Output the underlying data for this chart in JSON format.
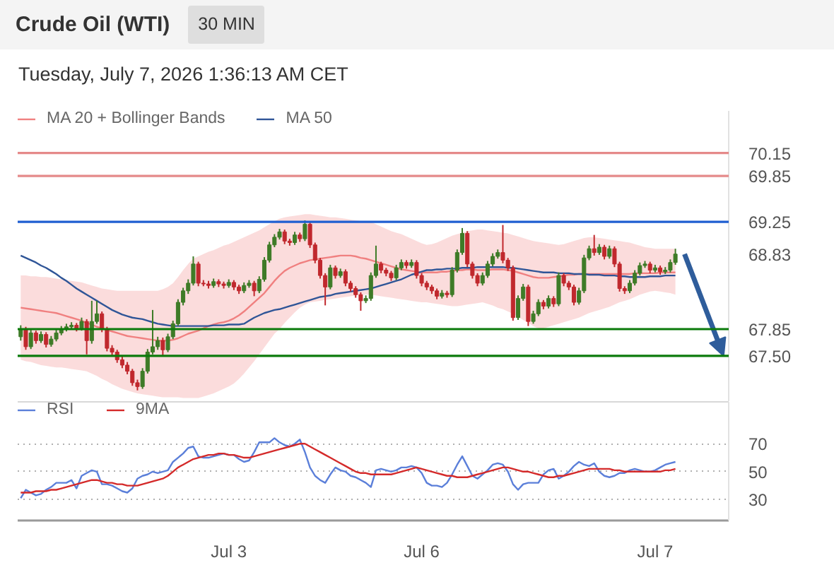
{
  "chart_data": [
    {
      "type": "candlestick",
      "title": "Crude Oil (WTI)",
      "subtitle": "Tuesday, July 7, 2026 1:36:13 AM CET",
      "annotations": [
        "30 MIN"
      ],
      "categories": [
        null,
        null,
        null,
        null,
        null,
        null,
        null,
        null,
        null,
        null,
        null,
        null,
        null,
        null,
        null,
        null,
        null,
        null,
        null,
        null,
        null,
        null,
        null,
        null,
        null,
        null,
        null,
        null,
        null,
        null,
        null,
        null,
        null,
        null,
        null,
        null,
        null,
        null,
        null,
        null,
        null,
        null,
        null,
        null,
        null,
        null,
        null,
        null,
        null,
        null,
        null,
        null,
        null,
        null,
        null,
        null,
        null,
        null,
        null,
        null,
        null,
        null,
        null,
        null,
        null,
        null,
        null,
        null,
        null,
        null,
        null,
        null,
        null,
        null,
        null,
        null,
        null,
        null,
        null,
        null,
        null,
        null,
        null,
        null,
        null,
        null,
        null,
        null,
        null,
        null,
        null,
        null,
        null,
        null,
        null,
        null,
        null,
        null,
        null,
        null,
        null,
        null,
        null,
        null,
        null,
        null,
        null,
        null,
        null,
        null,
        null,
        null,
        null,
        null,
        null,
        null,
        null,
        null,
        null,
        null,
        null,
        null,
        null,
        null,
        null,
        null,
        null,
        null,
        null,
        null
      ],
      "ohlc": [
        [
          67.75,
          67.9,
          67.7,
          67.85
        ],
        [
          67.85,
          67.88,
          67.58,
          67.62
        ],
        [
          67.62,
          67.84,
          67.59,
          67.8
        ],
        [
          67.8,
          67.83,
          67.66,
          67.7
        ],
        [
          67.7,
          67.82,
          67.67,
          67.78
        ],
        [
          67.78,
          67.81,
          67.61,
          67.65
        ],
        [
          67.65,
          67.76,
          67.62,
          67.72
        ],
        [
          67.72,
          67.84,
          67.69,
          67.8
        ],
        [
          67.8,
          67.89,
          67.77,
          67.85
        ],
        [
          67.85,
          67.92,
          67.82,
          67.88
        ],
        [
          67.88,
          67.94,
          67.85,
          67.9
        ],
        [
          67.9,
          67.93,
          67.82,
          67.86
        ],
        [
          67.86,
          68.0,
          67.83,
          67.95
        ],
        [
          67.95,
          67.98,
          67.52,
          67.7
        ],
        [
          67.7,
          68.22,
          67.66,
          67.95
        ],
        [
          67.95,
          68.22,
          67.92,
          68.05
        ],
        [
          68.05,
          68.08,
          67.81,
          67.85
        ],
        [
          67.85,
          67.88,
          67.56,
          67.6
        ],
        [
          67.6,
          67.64,
          67.51,
          67.55
        ],
        [
          67.55,
          67.58,
          67.41,
          67.45
        ],
        [
          67.45,
          67.49,
          67.34,
          67.38
        ],
        [
          67.38,
          67.42,
          67.26,
          67.3
        ],
        [
          67.3,
          67.33,
          67.11,
          67.15
        ],
        [
          67.15,
          67.19,
          67.05,
          67.1
        ],
        [
          67.1,
          67.34,
          67.07,
          67.3
        ],
        [
          67.3,
          67.59,
          67.27,
          67.55
        ],
        [
          67.55,
          68.1,
          67.52,
          67.62
        ],
        [
          67.62,
          67.75,
          67.58,
          67.7
        ],
        [
          67.7,
          67.74,
          67.5,
          67.58
        ],
        [
          67.58,
          67.79,
          67.55,
          67.75
        ],
        [
          67.75,
          67.96,
          67.72,
          67.92
        ],
        [
          67.92,
          68.24,
          67.89,
          68.2
        ],
        [
          68.2,
          68.39,
          68.16,
          68.35
        ],
        [
          68.35,
          68.5,
          68.31,
          68.45
        ],
        [
          68.45,
          68.8,
          68.42,
          68.7
        ],
        [
          68.7,
          68.73,
          68.41,
          68.45
        ],
        [
          68.45,
          68.49,
          68.41,
          68.44
        ],
        [
          68.44,
          68.48,
          68.38,
          68.42
        ],
        [
          68.42,
          68.51,
          68.39,
          68.47
        ],
        [
          68.47,
          68.5,
          68.4,
          68.44
        ],
        [
          68.44,
          68.47,
          68.38,
          68.42
        ],
        [
          68.42,
          68.5,
          68.39,
          68.46
        ],
        [
          68.46,
          68.49,
          68.36,
          68.4
        ],
        [
          68.4,
          68.43,
          68.31,
          68.35
        ],
        [
          68.35,
          68.46,
          68.32,
          68.42
        ],
        [
          68.42,
          68.49,
          68.39,
          68.45
        ],
        [
          68.45,
          68.48,
          68.28,
          68.35
        ],
        [
          68.35,
          68.54,
          68.32,
          68.5
        ],
        [
          68.5,
          68.79,
          68.47,
          68.75
        ],
        [
          68.75,
          68.99,
          68.72,
          68.95
        ],
        [
          68.95,
          69.09,
          68.92,
          69.05
        ],
        [
          69.05,
          69.16,
          69.02,
          69.12
        ],
        [
          69.12,
          69.15,
          68.96,
          69.0
        ],
        [
          69.0,
          69.03,
          68.94,
          68.98
        ],
        [
          68.98,
          69.12,
          68.95,
          69.08
        ],
        [
          69.08,
          69.11,
          68.99,
          69.03
        ],
        [
          69.03,
          69.27,
          69.0,
          69.22
        ],
        [
          69.22,
          69.25,
          68.91,
          68.95
        ],
        [
          68.95,
          68.98,
          68.71,
          68.75
        ],
        [
          68.75,
          68.78,
          68.51,
          68.55
        ],
        [
          68.55,
          68.58,
          68.16,
          68.4
        ],
        [
          68.4,
          68.69,
          68.37,
          68.65
        ],
        [
          68.65,
          68.68,
          68.51,
          68.55
        ],
        [
          68.55,
          68.64,
          68.52,
          68.6
        ],
        [
          68.6,
          68.63,
          68.41,
          68.45
        ],
        [
          68.45,
          68.48,
          68.34,
          68.38
        ],
        [
          68.38,
          68.41,
          68.26,
          68.3
        ],
        [
          68.3,
          68.33,
          68.09,
          68.22
        ],
        [
          68.22,
          68.29,
          68.19,
          68.25
        ],
        [
          68.25,
          68.59,
          68.22,
          68.55
        ],
        [
          68.55,
          68.94,
          68.52,
          68.7
        ],
        [
          68.7,
          68.73,
          68.58,
          68.62
        ],
        [
          68.62,
          68.65,
          68.54,
          68.58
        ],
        [
          68.58,
          68.61,
          68.48,
          68.52
        ],
        [
          68.52,
          68.69,
          68.49,
          68.65
        ],
        [
          68.65,
          68.76,
          68.62,
          68.72
        ],
        [
          68.72,
          68.75,
          68.64,
          68.68
        ],
        [
          68.68,
          68.76,
          68.65,
          68.72
        ],
        [
          68.72,
          68.75,
          68.51,
          68.55
        ],
        [
          68.55,
          68.58,
          68.41,
          68.45
        ],
        [
          68.45,
          68.48,
          68.36,
          68.4
        ],
        [
          68.4,
          68.43,
          68.31,
          68.35
        ],
        [
          68.35,
          68.38,
          68.24,
          68.28
        ],
        [
          68.28,
          68.36,
          68.25,
          68.32
        ],
        [
          68.32,
          68.35,
          68.26,
          68.3
        ],
        [
          68.3,
          68.66,
          68.27,
          68.62
        ],
        [
          68.62,
          68.89,
          68.59,
          68.85
        ],
        [
          68.85,
          69.17,
          68.82,
          69.1
        ],
        [
          69.1,
          69.13,
          68.66,
          68.7
        ],
        [
          68.7,
          68.73,
          68.51,
          68.55
        ],
        [
          68.55,
          68.58,
          68.41,
          68.45
        ],
        [
          68.45,
          68.59,
          68.42,
          68.55
        ],
        [
          68.55,
          68.74,
          68.52,
          68.7
        ],
        [
          68.7,
          68.84,
          68.67,
          68.8
        ],
        [
          68.8,
          68.89,
          68.77,
          68.85
        ],
        [
          68.85,
          69.21,
          68.71,
          68.75
        ],
        [
          68.75,
          68.78,
          68.61,
          68.65
        ],
        [
          68.65,
          68.68,
          67.96,
          68.0
        ],
        [
          68.0,
          68.29,
          67.97,
          68.25
        ],
        [
          68.25,
          68.44,
          68.22,
          68.4
        ],
        [
          68.4,
          68.43,
          67.89,
          67.95
        ],
        [
          67.95,
          68.09,
          67.92,
          68.05
        ],
        [
          68.05,
          68.24,
          68.02,
          68.2
        ],
        [
          68.2,
          68.23,
          68.11,
          68.15
        ],
        [
          68.15,
          68.29,
          68.12,
          68.25
        ],
        [
          68.25,
          68.28,
          68.14,
          68.18
        ],
        [
          68.18,
          68.59,
          68.15,
          68.55
        ],
        [
          68.55,
          68.58,
          68.41,
          68.45
        ],
        [
          68.45,
          68.48,
          68.36,
          68.4
        ],
        [
          68.4,
          68.43,
          68.16,
          68.2
        ],
        [
          68.2,
          68.39,
          68.17,
          68.35
        ],
        [
          68.35,
          68.82,
          68.32,
          68.78
        ],
        [
          68.78,
          68.94,
          68.75,
          68.9
        ],
        [
          68.9,
          69.08,
          68.81,
          68.85
        ],
        [
          68.85,
          68.96,
          68.82,
          68.92
        ],
        [
          68.92,
          68.95,
          68.76,
          68.8
        ],
        [
          68.8,
          68.94,
          68.77,
          68.9
        ],
        [
          68.9,
          68.93,
          68.66,
          68.7
        ],
        [
          68.7,
          68.73,
          68.34,
          68.38
        ],
        [
          68.38,
          68.41,
          68.31,
          68.35
        ],
        [
          68.35,
          68.49,
          68.32,
          68.45
        ],
        [
          68.45,
          68.62,
          68.42,
          68.58
        ],
        [
          68.58,
          68.72,
          68.55,
          68.68
        ],
        [
          68.68,
          68.74,
          68.65,
          68.7
        ],
        [
          68.7,
          68.73,
          68.58,
          68.62
        ],
        [
          68.62,
          68.69,
          68.59,
          68.65
        ],
        [
          68.65,
          68.68,
          68.56,
          68.6
        ],
        [
          68.6,
          68.66,
          68.57,
          68.62
        ],
        [
          68.62,
          68.76,
          68.59,
          68.72
        ],
        [
          68.72,
          68.9,
          68.69,
          68.83
        ]
      ],
      "colors": [
        "#3e7b27",
        "#c0282d",
        "#3e7b27",
        "#c0282d",
        "#3e7b27",
        "#c0282d",
        "#3e7b27",
        "#3e7b27",
        "#3e7b27",
        "#3e7b27",
        "#3e7b27",
        "#c0282d",
        "#3e7b27",
        "#c0282d",
        "#3e7b27",
        "#3e7b27",
        "#c0282d",
        "#c0282d",
        "#c0282d",
        "#c0282d",
        "#c0282d",
        "#c0282d",
        "#c0282d",
        "#c0282d",
        "#3e7b27",
        "#3e7b27",
        "#3e7b27",
        "#3e7b27",
        "#c0282d",
        "#3e7b27",
        "#3e7b27",
        "#3e7b27",
        "#3e7b27",
        "#3e7b27",
        "#3e7b27",
        "#c0282d",
        "#c0282d",
        "#c0282d",
        "#3e7b27",
        "#c0282d",
        "#c0282d",
        "#3e7b27",
        "#c0282d",
        "#c0282d",
        "#3e7b27",
        "#3e7b27",
        "#c0282d",
        "#3e7b27",
        "#3e7b27",
        "#3e7b27",
        "#3e7b27",
        "#3e7b27",
        "#c0282d",
        "#c0282d",
        "#3e7b27",
        "#c0282d",
        "#3e7b27",
        "#c0282d",
        "#c0282d",
        "#c0282d",
        "#c0282d",
        "#3e7b27",
        "#c0282d",
        "#3e7b27",
        "#c0282d",
        "#c0282d",
        "#c0282d",
        "#c0282d",
        "#3e7b27",
        "#3e7b27",
        "#3e7b27",
        "#c0282d",
        "#c0282d",
        "#c0282d",
        "#3e7b27",
        "#3e7b27",
        "#c0282d",
        "#3e7b27",
        "#c0282d",
        "#c0282d",
        "#c0282d",
        "#c0282d",
        "#c0282d",
        "#3e7b27",
        "#c0282d",
        "#3e7b27",
        "#3e7b27",
        "#3e7b27",
        "#c0282d",
        "#c0282d",
        "#c0282d",
        "#3e7b27",
        "#3e7b27",
        "#3e7b27",
        "#3e7b27",
        "#c0282d",
        "#c0282d",
        "#c0282d",
        "#3e7b27",
        "#3e7b27",
        "#c0282d",
        "#3e7b27",
        "#3e7b27",
        "#c0282d",
        "#3e7b27",
        "#c0282d",
        "#3e7b27",
        "#c0282d",
        "#c0282d",
        "#c0282d",
        "#3e7b27",
        "#3e7b27",
        "#3e7b27",
        "#c0282d",
        "#3e7b27",
        "#c0282d",
        "#3e7b27",
        "#c0282d",
        "#c0282d",
        "#c0282d",
        "#3e7b27",
        "#3e7b27",
        "#3e7b27",
        "#3e7b27",
        "#c0282d",
        "#3e7b27",
        "#c0282d",
        "#3e7b27",
        "#3e7b27",
        "#3e7b27"
      ],
      "series": [
        {
          "type": "line",
          "name": "MA 20 + Bollinger Bands",
          "color": "#f08080",
          "values": [
            68.13,
            68.12,
            68.11,
            68.1,
            68.09,
            68.08,
            68.07,
            68.06,
            68.04,
            68.02,
            68.0,
            67.98,
            67.96,
            67.93,
            67.91,
            67.88,
            67.86,
            67.84,
            67.82,
            67.8,
            67.78,
            67.76,
            67.75,
            67.74,
            67.73,
            67.72,
            67.71,
            67.7,
            67.7,
            67.7,
            67.71,
            67.73,
            67.76,
            67.79,
            67.81,
            67.83,
            67.86,
            67.89,
            67.91,
            67.93,
            67.94,
            67.96,
            67.99,
            68.03,
            68.08,
            68.14,
            68.2,
            68.26,
            68.32,
            68.4,
            68.48,
            68.55,
            68.61,
            68.65,
            68.68,
            68.71,
            68.73,
            68.75,
            68.76,
            68.77,
            68.78,
            68.79,
            68.8,
            68.81,
            68.81,
            68.81,
            68.8,
            68.78,
            68.77,
            68.75,
            68.73,
            68.71,
            68.69,
            68.67,
            68.65,
            68.63,
            68.62,
            68.61,
            68.6,
            68.59,
            68.59,
            68.59,
            68.59,
            68.6,
            68.6,
            68.61,
            68.62,
            68.62,
            68.63,
            68.63,
            68.62,
            68.62,
            68.62,
            68.63,
            68.63,
            68.63,
            68.62,
            68.61,
            68.59,
            68.57,
            68.55,
            68.53,
            68.52,
            68.52,
            68.52,
            68.53,
            68.54,
            68.55,
            68.56,
            68.56,
            68.57,
            68.57,
            68.57,
            68.57,
            68.57,
            68.57,
            68.57,
            68.57,
            68.57,
            68.57,
            68.57,
            68.58,
            68.58,
            68.58,
            68.58,
            68.58,
            68.59,
            68.59,
            68.59,
            68.59
          ],
          "upper": [
            68.55,
            68.55,
            68.54,
            68.54,
            68.53,
            68.53,
            68.52,
            68.51,
            68.5,
            68.49,
            68.48,
            68.47,
            68.46,
            68.44,
            68.42,
            68.4,
            68.38,
            68.37,
            68.36,
            68.35,
            68.35,
            68.35,
            68.35,
            68.35,
            68.35,
            68.35,
            68.35,
            68.35,
            68.37,
            68.4,
            68.45,
            68.53,
            68.62,
            68.7,
            68.77,
            68.8,
            68.83,
            68.86,
            68.88,
            68.91,
            68.94,
            68.96,
            68.99,
            69.02,
            69.05,
            69.08,
            69.11,
            69.14,
            69.18,
            69.22,
            69.26,
            69.29,
            69.31,
            69.32,
            69.33,
            69.34,
            69.35,
            69.35,
            69.34,
            69.33,
            69.32,
            69.31,
            69.31,
            69.3,
            69.29,
            69.28,
            69.27,
            69.26,
            69.25,
            69.25,
            69.22,
            69.19,
            69.16,
            69.13,
            69.11,
            69.09,
            69.06,
            69.03,
            69.0,
            68.97,
            68.95,
            68.96,
            68.98,
            69.01,
            69.04,
            69.07,
            69.09,
            69.11,
            69.13,
            69.14,
            69.15,
            69.15,
            69.14,
            69.13,
            69.12,
            69.11,
            69.1,
            69.08,
            69.06,
            69.04,
            69.02,
            69.0,
            68.99,
            68.98,
            68.97,
            68.96,
            68.95,
            68.96,
            68.98,
            69.0,
            69.02,
            69.04,
            69.05,
            69.05,
            69.04,
            69.03,
            69.02,
            69.01,
            69.0,
            68.99,
            68.98,
            68.96,
            68.94,
            68.92,
            68.91,
            68.9,
            68.9,
            68.9,
            68.9,
            68.9
          ],
          "lower": [
            67.45,
            67.43,
            67.42,
            67.4,
            67.38,
            67.37,
            67.36,
            67.35,
            67.35,
            67.34,
            67.33,
            67.32,
            67.31,
            67.3,
            67.27,
            67.24,
            67.2,
            67.17,
            67.13,
            67.1,
            67.07,
            67.05,
            67.03,
            67.01,
            67.0,
            66.99,
            66.98,
            66.97,
            66.96,
            66.96,
            66.96,
            66.96,
            66.95,
            66.95,
            66.95,
            66.95,
            66.97,
            66.99,
            67.01,
            67.04,
            67.07,
            67.1,
            67.14,
            67.2,
            67.27,
            67.35,
            67.43,
            67.52,
            67.61,
            67.7,
            67.79,
            67.85,
            67.93,
            68.0,
            68.07,
            68.13,
            68.17,
            68.2,
            68.21,
            68.22,
            68.23,
            68.24,
            68.25,
            68.26,
            68.27,
            68.28,
            68.29,
            68.3,
            68.3,
            68.3,
            68.29,
            68.28,
            68.27,
            68.26,
            68.25,
            68.24,
            68.23,
            68.22,
            68.21,
            68.2,
            68.2,
            68.19,
            68.18,
            68.17,
            68.16,
            68.15,
            68.15,
            68.16,
            68.17,
            68.18,
            68.19,
            68.2,
            68.18,
            68.16,
            68.13,
            68.11,
            68.08,
            68.05,
            68.01,
            67.97,
            67.93,
            67.89,
            67.86,
            67.86,
            67.88,
            67.9,
            67.92,
            67.94,
            67.96,
            67.98,
            68.0,
            68.03,
            68.06,
            68.08,
            68.1,
            68.12,
            68.14,
            68.17,
            68.2,
            68.22,
            68.24,
            68.27,
            68.3,
            68.32,
            68.34,
            68.35,
            68.34,
            68.33,
            68.32,
            68.3
          ]
        },
        {
          "type": "line",
          "name": "MA 50",
          "color": "#2f5597",
          "values": [
            68.81,
            68.78,
            68.75,
            68.72,
            68.68,
            68.65,
            68.61,
            68.57,
            68.52,
            68.48,
            68.43,
            68.38,
            68.34,
            68.3,
            68.26,
            68.22,
            68.18,
            68.14,
            68.1,
            68.07,
            68.04,
            68.02,
            68.0,
            67.99,
            67.98,
            67.96,
            67.94,
            67.92,
            67.91,
            67.9,
            67.89,
            67.89,
            67.89,
            67.89,
            67.89,
            67.89,
            67.89,
            67.89,
            67.9,
            67.9,
            67.9,
            67.91,
            67.91,
            67.91,
            67.92,
            67.96,
            68.0,
            68.03,
            68.06,
            68.08,
            68.1,
            68.11,
            68.13,
            68.15,
            68.17,
            68.19,
            68.21,
            68.23,
            68.25,
            68.27,
            68.28,
            68.29,
            68.31,
            68.32,
            68.33,
            68.34,
            68.35,
            68.36,
            68.37,
            68.38,
            68.4,
            68.42,
            68.44,
            68.46,
            68.48,
            68.5,
            68.53,
            68.56,
            68.58,
            68.6,
            68.62,
            68.62,
            68.63,
            68.63,
            68.64,
            68.64,
            68.64,
            68.65,
            68.65,
            68.65,
            68.66,
            68.66,
            68.66,
            68.66,
            68.66,
            68.66,
            68.65,
            68.65,
            68.64,
            68.63,
            68.62,
            68.61,
            68.6,
            68.59,
            68.59,
            68.59,
            68.58,
            68.58,
            68.58,
            68.57,
            68.57,
            68.57,
            68.56,
            68.56,
            68.56,
            68.55,
            68.55,
            68.55,
            68.54,
            68.54,
            68.53,
            68.53,
            68.53,
            68.53,
            68.54,
            68.54,
            68.54,
            68.55,
            68.55,
            68.55
          ]
        }
      ],
      "ylim": [
        66.9,
        70.7
      ],
      "yticks": [
        {
          "value": 67.5,
          "label": "67.50"
        },
        67.85,
        68.83,
        69.25,
        69.85,
        70.15
      ],
      "ref_lines": [
        {
          "axis": "y",
          "value": 70.15,
          "color": "#e58a8a"
        },
        {
          "axis": "y",
          "value": 69.85,
          "color": "#e58a8a"
        },
        {
          "axis": "y",
          "value": 69.25,
          "color": "#1f5fd1"
        },
        {
          "axis": "y",
          "value": 67.85,
          "color": "#0b7a0b"
        },
        {
          "axis": "y",
          "value": 67.5,
          "color": "#0b7a0b"
        }
      ],
      "legend": "top left",
      "tick_labels": "y"
    },
    {
      "type": "line",
      "categories": [
        null,
        null,
        null,
        null,
        null,
        null,
        null,
        null,
        null,
        null,
        null,
        null,
        null,
        null,
        null,
        null,
        null,
        null,
        null,
        null,
        null,
        null,
        null,
        null,
        null,
        null,
        null,
        null,
        null,
        null,
        null,
        null,
        null,
        null,
        null,
        null,
        null,
        null,
        null,
        null,
        null,
        "Jul 3",
        null,
        null,
        null,
        null,
        null,
        null,
        null,
        null,
        null,
        null,
        null,
        null,
        null,
        null,
        null,
        null,
        null,
        null,
        null,
        null,
        null,
        null,
        null,
        null,
        null,
        null,
        null,
        null,
        null,
        null,
        null,
        null,
        null,
        null,
        null,
        null,
        null,
        "Jul 6",
        null,
        null,
        null,
        null,
        null,
        null,
        null,
        null,
        null,
        null,
        null,
        null,
        null,
        null,
        null,
        null,
        null,
        null,
        null,
        null,
        null,
        null,
        null,
        null,
        null,
        null,
        null,
        null,
        null,
        null,
        null,
        null,
        null,
        null,
        null,
        null,
        null,
        null,
        null,
        null,
        null,
        null,
        null,
        null,
        null,
        "Jul 7",
        null,
        null,
        null,
        null
      ],
      "series": [
        {
          "name": "RSI",
          "color": "#5b7fd9",
          "values": [
            31,
            37,
            35,
            33,
            34,
            37,
            39,
            42,
            42,
            42,
            44,
            38,
            47,
            49,
            51,
            50,
            41,
            41,
            40,
            38,
            36,
            35,
            38,
            45,
            47,
            48,
            50,
            49,
            50,
            51,
            57,
            60,
            63,
            67,
            68,
            61,
            60,
            60,
            61,
            62,
            63,
            62,
            62,
            59,
            57,
            58,
            64,
            71,
            71,
            71,
            74,
            71,
            69,
            68,
            70,
            73,
            64,
            53,
            47,
            44,
            42,
            48,
            53,
            51,
            50,
            47,
            46,
            44,
            42,
            39,
            51,
            52,
            51,
            50,
            51,
            53,
            53,
            54,
            53,
            49,
            42,
            40,
            40,
            39,
            42,
            48,
            55,
            61,
            54,
            47,
            45,
            48,
            51,
            55,
            56,
            55,
            50,
            41,
            37,
            41,
            42,
            42,
            42,
            48,
            51,
            52,
            45,
            47,
            50,
            54,
            57,
            55,
            54,
            56,
            50,
            47,
            46,
            47,
            49,
            49,
            51,
            52,
            51,
            50,
            50,
            51,
            53,
            55,
            56,
            57
          ]
        },
        {
          "name": "9MA",
          "color": "#d42a2a",
          "values": [
            35,
            35,
            35,
            36,
            36,
            36,
            37,
            37,
            38,
            39,
            40,
            41,
            42,
            43,
            44,
            44,
            43,
            42,
            42,
            41,
            41,
            40,
            40,
            40,
            41,
            42,
            43,
            44,
            45,
            47,
            50,
            53,
            55,
            57,
            59,
            60,
            61,
            62,
            62,
            63,
            63,
            62,
            62,
            61,
            60,
            60,
            61,
            62,
            63,
            64,
            65,
            66,
            67,
            68,
            69,
            70,
            70,
            68,
            66,
            64,
            62,
            60,
            58,
            56,
            54,
            52,
            50,
            49,
            49,
            48,
            48,
            48,
            48,
            48,
            49,
            50,
            51,
            52,
            53,
            52,
            51,
            50,
            49,
            48,
            47,
            47,
            46,
            46,
            46,
            47,
            48,
            49,
            50,
            51,
            52,
            53,
            53,
            52,
            51,
            50,
            50,
            49,
            48,
            47,
            46,
            46,
            47,
            47,
            48,
            49,
            50,
            51,
            52,
            52,
            52,
            52,
            52,
            51,
            51,
            50,
            50,
            50,
            50,
            50,
            50,
            50,
            50,
            51,
            51,
            52
          ]
        }
      ],
      "ylim": [
        15,
        100
      ],
      "yticks": [
        30,
        50,
        70
      ],
      "grid": "y",
      "legend": "top left"
    }
  ]
}
